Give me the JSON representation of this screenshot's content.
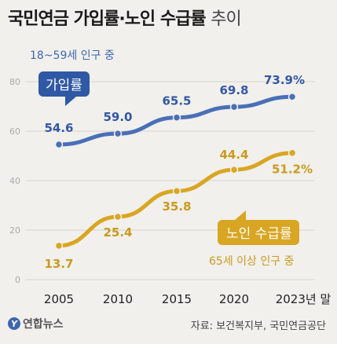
{
  "title": "국민연금 가입률·노인 수급률",
  "title_suffix": "추이",
  "subtitle": "18~59세 인구 중",
  "footer": {
    "logo_text": "연합뉴스",
    "logo_mark": "Y",
    "source": "자료: 보건복지부, 국민연금공단"
  },
  "colors": {
    "join": "#4a6fb8",
    "join_label": "#3358a6",
    "pension": "#d8a623",
    "pension_label": "#c99a1e",
    "grid": "#d6d3ce",
    "axis_text": "#aaa"
  },
  "chart_data": {
    "type": "line",
    "categories": [
      "2005",
      "2010",
      "2015",
      "2020",
      "2023년 말"
    ],
    "ylim": [
      0,
      80
    ],
    "yticks": [
      "0",
      "20",
      "40",
      "60",
      "80"
    ],
    "grid": true,
    "series": [
      {
        "name": "가입률",
        "key": "join",
        "values": [
          54.6,
          59.0,
          65.5,
          69.8,
          73.9
        ],
        "labels": [
          "54.6",
          "59.0",
          "65.5",
          "69.8",
          "73.9%"
        ]
      },
      {
        "name": "노인 수급률",
        "key": "pension",
        "note": "65세 이상 인구 중",
        "values": [
          13.7,
          25.4,
          35.8,
          44.4,
          51.2
        ],
        "labels": [
          "13.7",
          "25.4",
          "35.8",
          "44.4",
          "51.2%"
        ]
      }
    ]
  }
}
